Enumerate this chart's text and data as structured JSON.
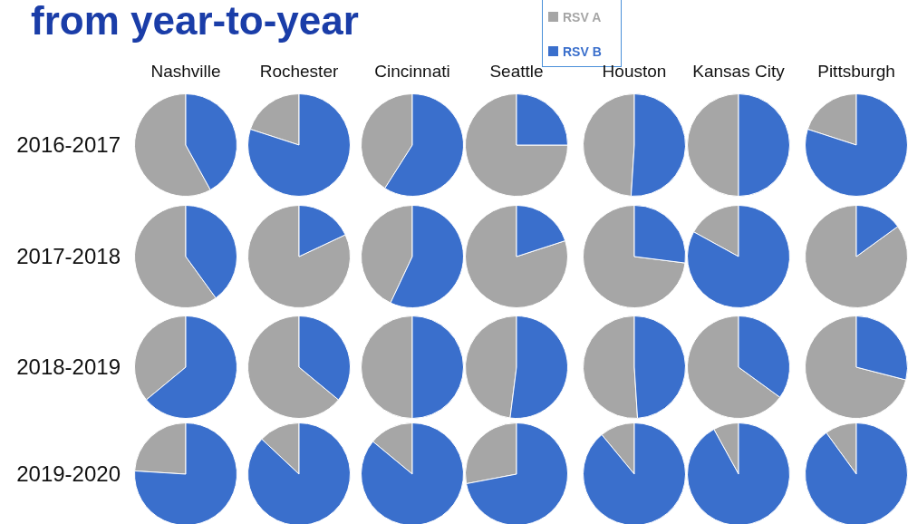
{
  "chart_data": [
    {
      "type": "other",
      "title": "from year-to-year"
    },
    {
      "type": "pie",
      "title": "Nashville",
      "ylabel": "2016-2017",
      "legend": "top",
      "categories": [
        "RSV A",
        "RSV B"
      ],
      "values": [
        58,
        42
      ],
      "colors": [
        "#a6a6a6",
        "#3a6fcc"
      ]
    },
    {
      "type": "pie",
      "title": "Rochester",
      "categories": [
        null,
        null
      ],
      "values": [
        20,
        80
      ],
      "colors": [
        "#a6a6a6",
        "#3a6fcc"
      ]
    },
    {
      "type": "pie",
      "title": "Cincinnati",
      "categories": [
        null,
        null
      ],
      "values": [
        41,
        59
      ],
      "colors": [
        "#a6a6a6",
        "#3a6fcc"
      ]
    },
    {
      "type": "pie",
      "title": "Seattle",
      "categories": [
        null,
        null
      ],
      "values": [
        75,
        25
      ],
      "colors": [
        "#a6a6a6",
        "#3a6fcc"
      ]
    },
    {
      "type": "pie",
      "title": "Houston",
      "categories": [
        null,
        null
      ],
      "values": [
        49,
        51
      ],
      "colors": [
        "#a6a6a6",
        "#3a6fcc"
      ]
    },
    {
      "type": "pie",
      "title": "Kansas City",
      "categories": [
        null,
        null
      ],
      "values": [
        50,
        50
      ],
      "colors": [
        "#a6a6a6",
        "#3a6fcc"
      ]
    },
    {
      "type": "pie",
      "title": "Pittsburgh",
      "categories": [
        null,
        null
      ],
      "values": [
        20,
        80
      ],
      "colors": [
        "#a6a6a6",
        "#3a6fcc"
      ]
    },
    {
      "type": "pie",
      "ylabel": "2017-2018",
      "categories": [
        null,
        null
      ],
      "values": [
        60,
        40
      ],
      "colors": [
        "#a6a6a6",
        "#3a6fcc"
      ]
    },
    {
      "type": "pie",
      "categories": [
        null,
        null
      ],
      "values": [
        82,
        18
      ],
      "colors": [
        "#a6a6a6",
        "#3a6fcc"
      ]
    },
    {
      "type": "pie",
      "categories": [
        null,
        null
      ],
      "values": [
        43,
        57
      ],
      "colors": [
        "#a6a6a6",
        "#3a6fcc"
      ]
    },
    {
      "type": "pie",
      "categories": [
        null,
        null
      ],
      "values": [
        80,
        20
      ],
      "colors": [
        "#a6a6a6",
        "#3a6fcc"
      ]
    },
    {
      "type": "pie",
      "categories": [
        null,
        null
      ],
      "values": [
        73,
        27
      ],
      "colors": [
        "#a6a6a6",
        "#3a6fcc"
      ]
    },
    {
      "type": "pie",
      "categories": [
        null,
        null
      ],
      "values": [
        17,
        83
      ],
      "colors": [
        "#a6a6a6",
        "#3a6fcc"
      ]
    },
    {
      "type": "pie",
      "categories": [
        null,
        null
      ],
      "values": [
        85,
        15
      ],
      "colors": [
        "#a6a6a6",
        "#3a6fcc"
      ]
    },
    {
      "type": "pie",
      "ylabel": "2018-2019",
      "categories": [
        null,
        null
      ],
      "values": [
        36,
        64
      ],
      "colors": [
        "#a6a6a6",
        "#3a6fcc"
      ]
    },
    {
      "type": "pie",
      "categories": [
        null,
        null
      ],
      "values": [
        64,
        36
      ],
      "colors": [
        "#a6a6a6",
        "#3a6fcc"
      ]
    },
    {
      "type": "pie",
      "categories": [
        null,
        null
      ],
      "values": [
        50,
        50
      ],
      "colors": [
        "#a6a6a6",
        "#3a6fcc"
      ]
    },
    {
      "type": "pie",
      "categories": [
        null,
        null
      ],
      "values": [
        48,
        52
      ],
      "colors": [
        "#a6a6a6",
        "#3a6fcc"
      ]
    },
    {
      "type": "pie",
      "categories": [
        null,
        null
      ],
      "values": [
        51,
        49
      ],
      "colors": [
        "#a6a6a6",
        "#3a6fcc"
      ]
    },
    {
      "type": "pie",
      "categories": [
        null,
        null
      ],
      "values": [
        65,
        35
      ],
      "colors": [
        "#a6a6a6",
        "#3a6fcc"
      ]
    },
    {
      "type": "pie",
      "categories": [
        null,
        null
      ],
      "values": [
        71,
        29
      ],
      "colors": [
        "#a6a6a6",
        "#3a6fcc"
      ]
    },
    {
      "type": "pie",
      "ylabel": "2019-2020",
      "categories": [
        null,
        null
      ],
      "values": [
        24,
        76
      ],
      "colors": [
        "#a6a6a6",
        "#3a6fcc"
      ]
    },
    {
      "type": "pie",
      "categories": [
        null,
        null
      ],
      "values": [
        13,
        87
      ],
      "colors": [
        "#a6a6a6",
        "#3a6fcc"
      ]
    },
    {
      "type": "pie",
      "categories": [
        null,
        null
      ],
      "values": [
        14,
        86
      ],
      "colors": [
        "#a6a6a6",
        "#3a6fcc"
      ]
    },
    {
      "type": "pie",
      "categories": [
        null,
        null
      ],
      "values": [
        28,
        72
      ],
      "colors": [
        "#a6a6a6",
        "#3a6fcc"
      ]
    },
    {
      "type": "pie",
      "categories": [
        null,
        null
      ],
      "values": [
        11,
        89
      ],
      "colors": [
        "#a6a6a6",
        "#3a6fcc"
      ]
    },
    {
      "type": "pie",
      "categories": [
        null,
        null
      ],
      "values": [
        8,
        92
      ],
      "colors": [
        "#a6a6a6",
        "#3a6fcc"
      ]
    },
    {
      "type": "pie",
      "categories": [
        null,
        null
      ],
      "values": [
        10,
        90
      ],
      "colors": [
        "#a6a6a6",
        "#3a6fcc"
      ]
    }
  ]
}
